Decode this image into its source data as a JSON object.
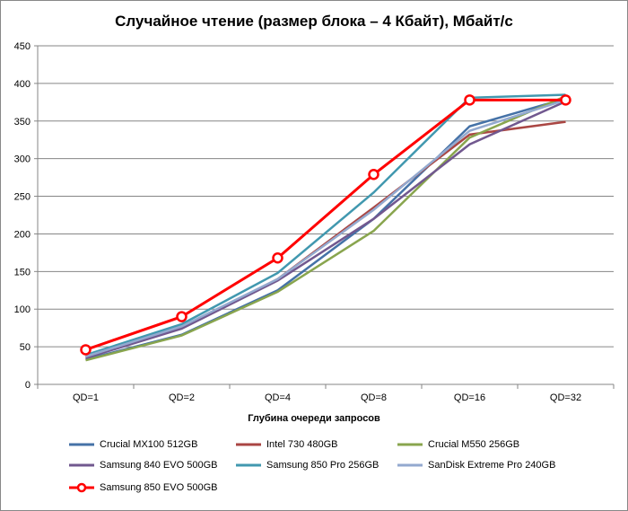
{
  "chart_data": {
    "type": "line",
    "title": "Случайное чтение (размер блока – 4 Кбайт), Мбайт/с",
    "xlabel": "Глубина очереди запросов",
    "ylabel": "",
    "categories": [
      "QD=1",
      "QD=2",
      "QD=4",
      "QD=8",
      "QD=16",
      "QD=32"
    ],
    "ylim": [
      0,
      450
    ],
    "yticks": [
      0,
      50,
      100,
      150,
      200,
      250,
      300,
      350,
      400,
      450
    ],
    "grid": true,
    "legend_position": "bottom",
    "series": [
      {
        "name": "Crucial MX100 512GB",
        "color": "#4572A7",
        "marker": false,
        "values": [
          33,
          66,
          125,
          220,
          343,
          380
        ]
      },
      {
        "name": "Intel 730 480GB",
        "color": "#AA4643",
        "marker": false,
        "values": [
          36,
          75,
          140,
          235,
          332,
          349
        ]
      },
      {
        "name": "Crucial M550 256GB",
        "color": "#89A54E",
        "marker": false,
        "values": [
          32,
          65,
          123,
          204,
          328,
          383
        ]
      },
      {
        "name": "Samsung 840 EVO 500GB",
        "color": "#71588F",
        "marker": false,
        "values": [
          35,
          74,
          138,
          220,
          319,
          376
        ]
      },
      {
        "name": "Samsung 850 Pro 256GB",
        "color": "#4198AF",
        "marker": false,
        "values": [
          39,
          80,
          148,
          255,
          381,
          385
        ]
      },
      {
        "name": "SanDisk Extreme Pro 240GB",
        "color": "#93A9CF",
        "marker": false,
        "values": [
          37,
          77,
          140,
          232,
          337,
          378
        ]
      },
      {
        "name": "Samsung 850 EVO 500GB",
        "color": "#FF0000",
        "marker": true,
        "values": [
          46,
          90,
          168,
          279,
          378,
          378
        ]
      }
    ]
  }
}
